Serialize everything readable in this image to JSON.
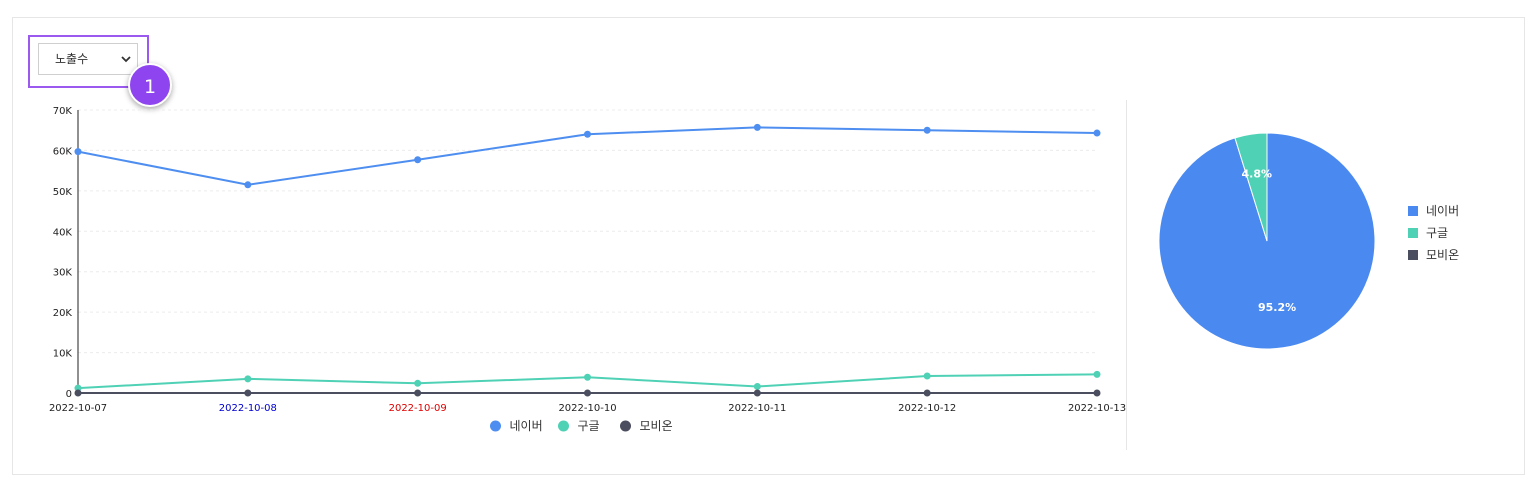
{
  "controls": {
    "metric_select": {
      "value": "노출수",
      "chevron_icon": "chevron-down-icon"
    },
    "step_badge": "1"
  },
  "colors": {
    "naver": "#4e8ef0",
    "google": "#4fd1b5",
    "mobion": "#4a4e5e",
    "accent": "#8e44ef",
    "weekend_blue": "#0000cc",
    "weekend_red": "#dd0000"
  },
  "chart_data": [
    {
      "type": "line",
      "x": [
        "2022-10-07",
        "2022-10-08",
        "2022-10-09",
        "2022-10-10",
        "2022-10-11",
        "2022-10-12",
        "2022-10-13"
      ],
      "x_label_colors": [
        "#222222",
        "#0000cc",
        "#dd0000",
        "#222222",
        "#222222",
        "#222222",
        "#222222"
      ],
      "yticks": [
        "0",
        "10K",
        "20K",
        "30K",
        "40K",
        "50K",
        "60K",
        "70K"
      ],
      "ylim": [
        0,
        70000
      ],
      "grid": true,
      "legend_position": "bottom",
      "series": [
        {
          "name": "네이버",
          "color": "#4e8ef0",
          "values": [
            59700,
            51500,
            57700,
            64000,
            65700,
            65000,
            64300
          ]
        },
        {
          "name": "구글",
          "color": "#4fd1b5",
          "values": [
            1200,
            3500,
            2400,
            3900,
            1600,
            4200,
            4600
          ]
        },
        {
          "name": "모비온",
          "color": "#4a4e5e",
          "values": [
            0,
            0,
            0,
            0,
            0,
            0,
            0
          ]
        }
      ]
    },
    {
      "type": "pie",
      "legend_position": "right",
      "slices": [
        {
          "name": "네이버",
          "value": 95.2,
          "label": "95.2%",
          "color": "#4a8af0"
        },
        {
          "name": "구글",
          "value": 4.8,
          "label": "4.8%",
          "color": "#4fd1b5"
        },
        {
          "name": "모비온",
          "value": 0,
          "label": "",
          "color": "#4a4e5e"
        }
      ]
    }
  ]
}
